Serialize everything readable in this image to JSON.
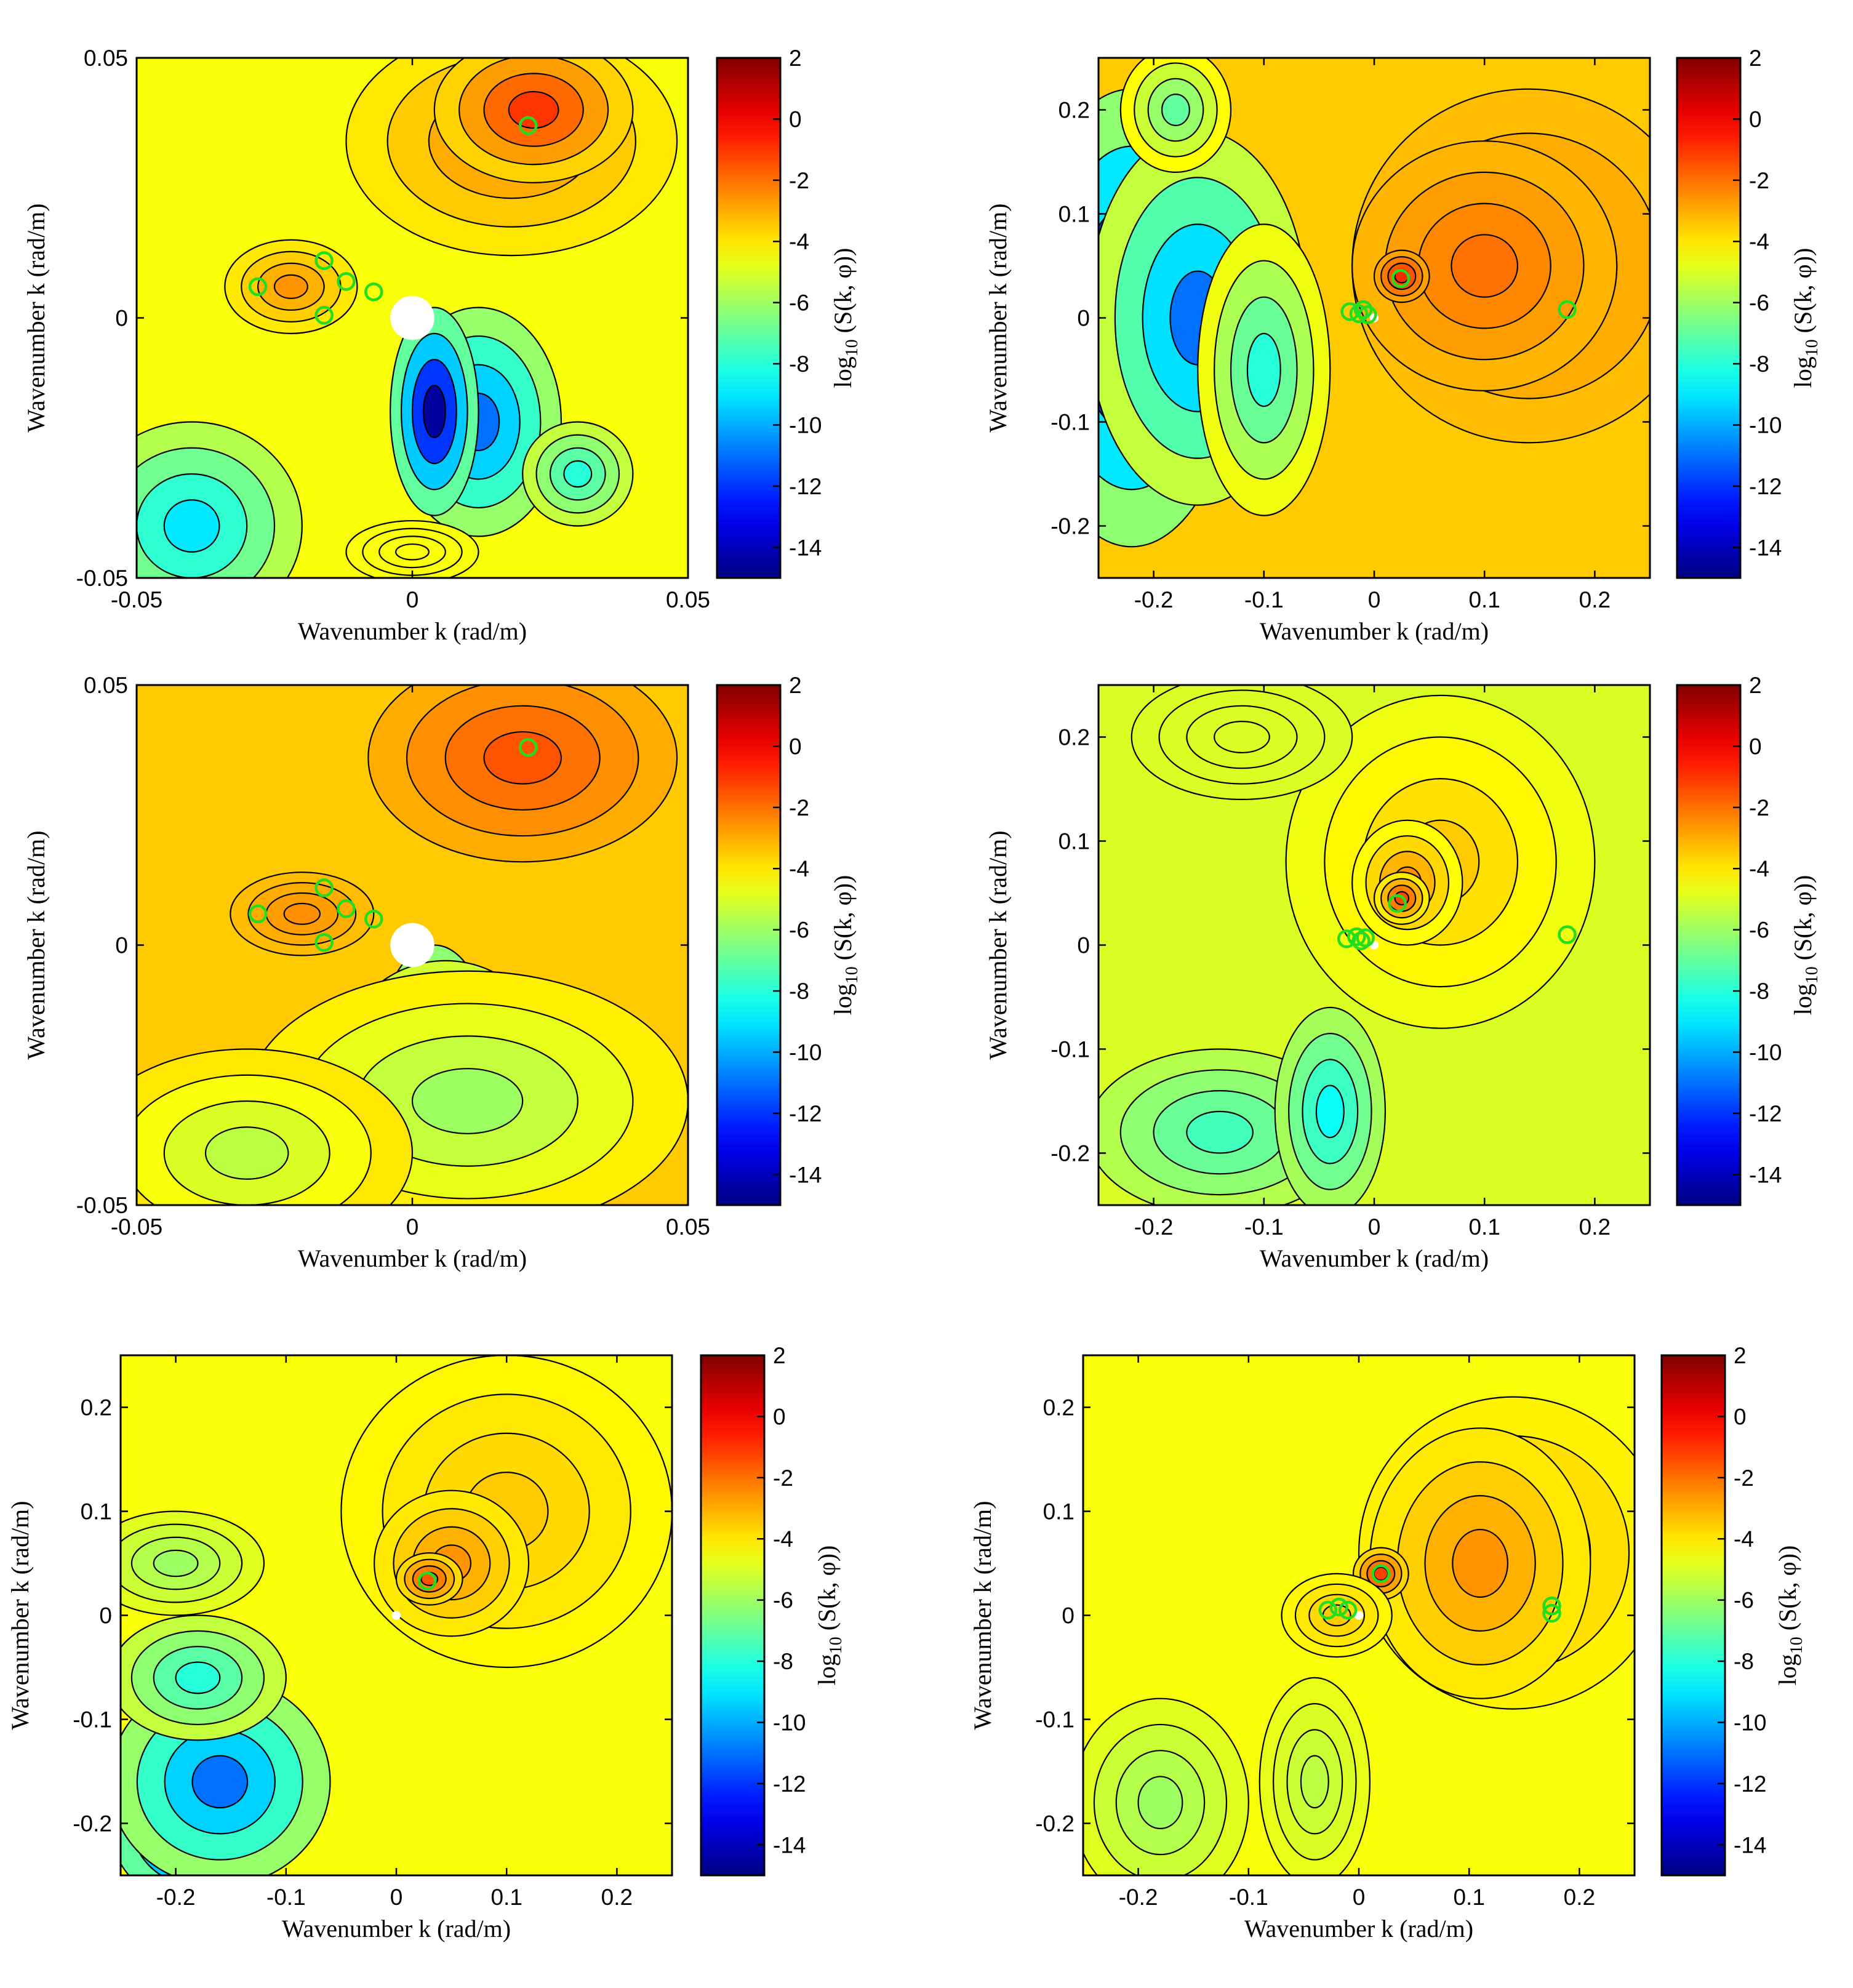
{
  "figure": {
    "layout": "3 rows x 2 columns"
  },
  "colormap": {
    "name": "jet",
    "stops": [
      "#00008f",
      "#0000ff",
      "#00ffff",
      "#ffff00",
      "#ff0000",
      "#800000"
    ]
  },
  "colors": {
    "marker": "#22dd22",
    "contour_line": "#000000",
    "excluded_region": "#ffffff"
  },
  "chart_data": [
    {
      "type": "contourf",
      "panel": "row1-left",
      "xlabel": "Wavenumber k (rad/m)",
      "ylabel": "Wavenumber k (rad/m)",
      "xlim": [
        -0.05,
        0.05
      ],
      "ylim": [
        -0.05,
        0.05
      ],
      "xticks": [
        -0.05,
        0,
        0.05
      ],
      "xticklabels": [
        "-0.05",
        "0",
        "0.05"
      ],
      "yticks": [
        -0.05,
        0,
        0.05
      ],
      "yticklabels": [
        "-0.05",
        "0",
        "0.05"
      ],
      "colorbar": {
        "label": "log10 (S(k, φ))",
        "label_main": "log",
        "label_sub": "10",
        "label_rest": " (S(k, φ))",
        "clim": [
          -15,
          2
        ],
        "ticks": [
          2,
          0,
          -2,
          -4,
          -6,
          -8,
          -10,
          -12,
          -14
        ],
        "ticklabels": [
          "2",
          "0",
          "-2",
          "-4",
          "-6",
          "-8",
          "-10",
          "-12",
          "-14"
        ]
      },
      "white_disk_radius": 0.004,
      "markers": [
        [
          0.021,
          0.037
        ],
        [
          -0.016,
          0.011
        ],
        [
          -0.012,
          0.007
        ],
        [
          -0.028,
          0.006
        ],
        [
          -0.007,
          0.005
        ],
        [
          -0.016,
          0.0005
        ]
      ]
    },
    {
      "type": "contourf",
      "panel": "row1-right",
      "xlabel": "Wavenumber k (rad/m)",
      "ylabel": "Wavenumber k (rad/m)",
      "xlim": [
        -0.25,
        0.25
      ],
      "ylim": [
        -0.25,
        0.25
      ],
      "xticks": [
        -0.2,
        -0.1,
        0,
        0.1,
        0.2
      ],
      "xticklabels": [
        "-0.2",
        "-0.1",
        "0",
        "0.1",
        "0.2"
      ],
      "yticks": [
        -0.2,
        -0.1,
        0,
        0.1,
        0.2
      ],
      "yticklabels": [
        "-0.2",
        "-0.1",
        "0",
        "0.1",
        "0.2"
      ],
      "colorbar": {
        "label": "log10 (S(k, φ))",
        "label_main": "log",
        "label_sub": "10",
        "label_rest": " (S(k, φ))",
        "clim": [
          -15,
          2
        ],
        "ticks": [
          2,
          0,
          -2,
          -4,
          -6,
          -8,
          -10,
          -12,
          -14
        ],
        "ticklabels": [
          "2",
          "0",
          "-2",
          "-4",
          "-6",
          "-8",
          "-10",
          "-12",
          "-14"
        ]
      },
      "white_disk_radius": 0.004,
      "markers": [
        [
          0.024,
          0.038
        ],
        [
          0.175,
          0.008
        ],
        [
          -0.022,
          0.006
        ],
        [
          -0.014,
          0.004
        ],
        [
          -0.01,
          0.008
        ],
        [
          -0.006,
          0.003
        ]
      ]
    },
    {
      "type": "contourf",
      "panel": "row2-left",
      "xlabel": "Wavenumber k (rad/m)",
      "ylabel": "Wavenumber k (rad/m)",
      "xlim": [
        -0.05,
        0.05
      ],
      "ylim": [
        -0.05,
        0.05
      ],
      "xticks": [
        -0.05,
        0,
        0.05
      ],
      "xticklabels": [
        "-0.05",
        "0",
        "0.05"
      ],
      "yticks": [
        -0.05,
        0,
        0.05
      ],
      "yticklabels": [
        "-0.05",
        "0",
        "0.05"
      ],
      "colorbar": {
        "label": "log10 (S(k, φ))",
        "label_main": "log",
        "label_sub": "10",
        "label_rest": " (S(k, φ))",
        "clim": [
          -15,
          2
        ],
        "ticks": [
          2,
          0,
          -2,
          -4,
          -6,
          -8,
          -10,
          -12,
          -14
        ],
        "ticklabels": [
          "2",
          "0",
          "-2",
          "-4",
          "-6",
          "-8",
          "-10",
          "-12",
          "-14"
        ]
      },
      "white_disk_radius": 0.004,
      "markers": [
        [
          0.021,
          0.038
        ],
        [
          -0.016,
          0.011
        ],
        [
          -0.012,
          0.007
        ],
        [
          -0.028,
          0.006
        ],
        [
          -0.007,
          0.005
        ],
        [
          -0.016,
          0.0005
        ]
      ]
    },
    {
      "type": "contourf",
      "panel": "row2-right",
      "xlabel": "Wavenumber k (rad/m)",
      "ylabel": "Wavenumber k (rad/m)",
      "xlim": [
        -0.25,
        0.25
      ],
      "ylim": [
        -0.25,
        0.25
      ],
      "xticks": [
        -0.2,
        -0.1,
        0,
        0.1,
        0.2
      ],
      "xticklabels": [
        "-0.2",
        "-0.1",
        "0",
        "0.1",
        "0.2"
      ],
      "yticks": [
        -0.2,
        -0.1,
        0,
        0.1,
        0.2
      ],
      "yticklabels": [
        "-0.2",
        "-0.1",
        "0",
        "0.1",
        "0.2"
      ],
      "colorbar": {
        "label": "log10 (S(k, φ))",
        "label_main": "log",
        "label_sub": "10",
        "label_rest": " (S(k, φ))",
        "clim": [
          -15,
          2
        ],
        "ticks": [
          2,
          0,
          -2,
          -4,
          -6,
          -8,
          -10,
          -12,
          -14
        ],
        "ticklabels": [
          "2",
          "0",
          "-2",
          "-4",
          "-6",
          "-8",
          "-10",
          "-12",
          "-14"
        ]
      },
      "white_disk_radius": 0.004,
      "markers": [
        [
          0.021,
          0.04
        ],
        [
          0.175,
          0.01
        ],
        [
          -0.025,
          0.006
        ],
        [
          -0.016,
          0.008
        ],
        [
          -0.012,
          0.004
        ],
        [
          -0.008,
          0.007
        ]
      ]
    },
    {
      "type": "contourf",
      "panel": "row3-left",
      "xlabel": "Wavenumber k (rad/m)",
      "ylabel": "Wavenumber k (rad/m)",
      "xlim": [
        -0.25,
        0.25
      ],
      "ylim": [
        -0.25,
        0.25
      ],
      "xticks": [
        -0.2,
        -0.1,
        0,
        0.1,
        0.2
      ],
      "xticklabels": [
        "-0.2",
        "-0.1",
        "0",
        "0.1",
        "0.2"
      ],
      "yticks": [
        -0.2,
        -0.1,
        0,
        0.1,
        0.2
      ],
      "yticklabels": [
        "-0.2",
        "-0.1",
        "0",
        "0.1",
        "0.2"
      ],
      "colorbar": {
        "label": "log10 (S(k, φ))",
        "label_main": "log",
        "label_sub": "10",
        "label_rest": " (S(k, φ))",
        "clim": [
          -15,
          2
        ],
        "ticks": [
          2,
          0,
          -2,
          -4,
          -6,
          -8,
          -10,
          -12,
          -14
        ],
        "ticklabels": [
          "2",
          "0",
          "-2",
          "-4",
          "-6",
          "-8",
          "-10",
          "-12",
          "-14"
        ]
      },
      "white_disk_radius": 0.004,
      "markers": [
        [
          0.028,
          0.033
        ]
      ]
    },
    {
      "type": "contourf",
      "panel": "row3-right",
      "xlabel": "Wavenumber k (rad/m)",
      "ylabel": "Wavenumber k (rad/m)",
      "xlim": [
        -0.25,
        0.25
      ],
      "ylim": [
        -0.25,
        0.25
      ],
      "xticks": [
        -0.2,
        -0.1,
        0,
        0.1,
        0.2
      ],
      "xticklabels": [
        "-0.2",
        "-0.1",
        "0",
        "0.1",
        "0.2"
      ],
      "yticks": [
        -0.2,
        -0.1,
        0,
        0.1,
        0.2
      ],
      "yticklabels": [
        "-0.2",
        "-0.1",
        "0",
        "0.1",
        "0.2"
      ],
      "colorbar": {
        "label": "log10 (S(k, φ))",
        "label_main": "log",
        "label_sub": "10",
        "label_rest": " (S(k, φ))",
        "clim": [
          -15,
          2
        ],
        "ticks": [
          2,
          0,
          -2,
          -4,
          -6,
          -8,
          -10,
          -12,
          -14
        ],
        "ticklabels": [
          "2",
          "0",
          "-2",
          "-4",
          "-6",
          "-8",
          "-10",
          "-12",
          "-14"
        ]
      },
      "white_disk_radius": 0.004,
      "markers": [
        [
          0.02,
          0.04
        ],
        [
          0.175,
          0.009
        ],
        [
          0.175,
          0.002
        ],
        [
          -0.028,
          0.005
        ],
        [
          -0.018,
          0.008
        ],
        [
          -0.01,
          0.005
        ]
      ]
    }
  ]
}
